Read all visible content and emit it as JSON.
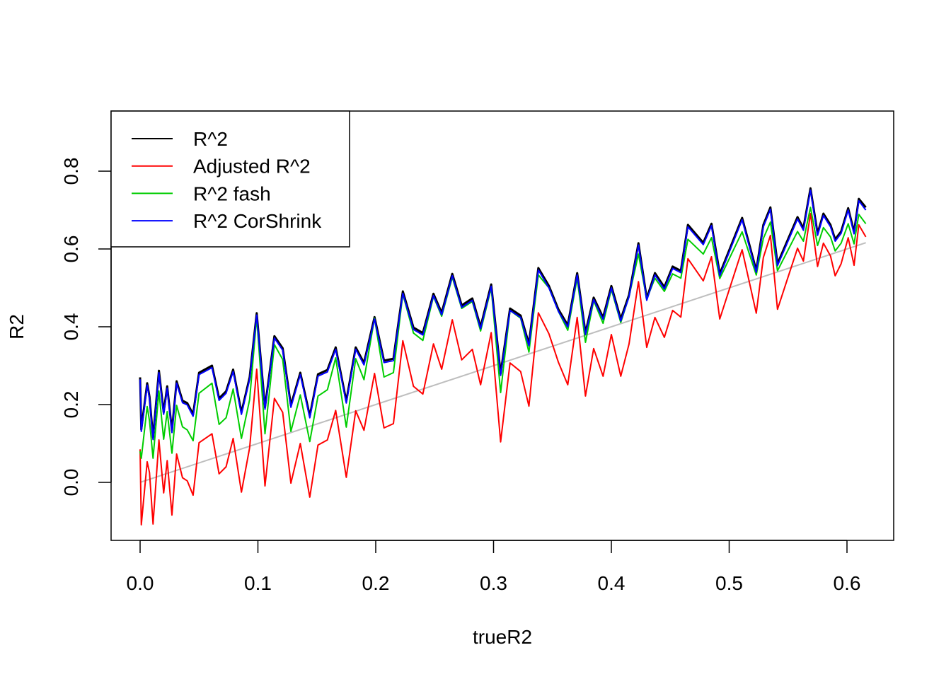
{
  "chart_data": {
    "type": "line",
    "title": "",
    "xlabel": "trueR2",
    "ylabel": "R2",
    "xlim": [
      -0.025,
      0.64
    ],
    "ylim": [
      -0.15,
      0.95
    ],
    "xticks": [
      "0.0",
      "0.1",
      "0.2",
      "0.3",
      "0.4",
      "0.5",
      "0.6"
    ],
    "xtick_values": [
      0,
      0.1,
      0.2,
      0.3,
      0.4,
      0.5,
      0.6
    ],
    "yticks": [
      "0.0",
      "0.2",
      "0.4",
      "0.6",
      "0.8"
    ],
    "ytick_values": [
      0,
      0.2,
      0.4,
      0.6,
      0.8
    ],
    "legend_position": "top-left",
    "x": [
      0,
      0.001,
      0.006,
      0.008,
      0.011,
      0.016,
      0.02,
      0.023,
      0.027,
      0.031,
      0.036,
      0.04,
      0.045,
      0.05,
      0.061,
      0.067,
      0.073,
      0.079,
      0.086,
      0.093,
      0.099,
      0.106,
      0.114,
      0.121,
      0.128,
      0.136,
      0.144,
      0.151,
      0.159,
      0.166,
      0.175,
      0.183,
      0.19,
      0.199,
      0.207,
      0.215,
      0.223,
      0.232,
      0.24,
      0.249,
      0.256,
      0.265,
      0.273,
      0.282,
      0.289,
      0.298,
      0.306,
      0.314,
      0.323,
      0.33,
      0.338,
      0.347,
      0.355,
      0.363,
      0.371,
      0.378,
      0.385,
      0.393,
      0.4,
      0.408,
      0.415,
      0.423,
      0.43,
      0.437,
      0.445,
      0.452,
      0.459,
      0.465,
      0.478,
      0.485,
      0.492,
      0.511,
      0.523,
      0.529,
      0.535,
      0.541,
      0.558,
      0.563,
      0.569,
      0.575,
      0.58,
      0.586,
      0.59,
      0.595,
      0.601,
      0.606,
      0.61,
      0.616
    ],
    "series": [
      {
        "name": "R^2",
        "color": "#000000",
        "values": [
          0.27,
          0.136,
          0.255,
          0.22,
          0.115,
          0.287,
          0.18,
          0.247,
          0.133,
          0.26,
          0.21,
          0.204,
          0.175,
          0.282,
          0.3,
          0.216,
          0.234,
          0.29,
          0.18,
          0.27,
          0.435,
          0.193,
          0.376,
          0.345,
          0.198,
          0.282,
          0.171,
          0.278,
          0.289,
          0.347,
          0.209,
          0.347,
          0.307,
          0.425,
          0.313,
          0.318,
          0.491,
          0.398,
          0.384,
          0.485,
          0.436,
          0.536,
          0.455,
          0.473,
          0.4,
          0.509,
          0.28,
          0.447,
          0.429,
          0.356,
          0.551,
          0.505,
          0.445,
          0.404,
          0.538,
          0.385,
          0.475,
          0.424,
          0.505,
          0.42,
          0.482,
          0.615,
          0.473,
          0.538,
          0.502,
          0.555,
          0.544,
          0.662,
          0.616,
          0.665,
          0.536,
          0.68,
          0.545,
          0.662,
          0.707,
          0.562,
          0.682,
          0.653,
          0.756,
          0.64,
          0.691,
          0.662,
          0.625,
          0.645,
          0.705,
          0.644,
          0.729,
          0.707
        ]
      },
      {
        "name": "Adjusted R^2",
        "color": "#ff0000",
        "values": [
          0.085,
          -0.109,
          0.053,
          0.025,
          -0.107,
          0.109,
          -0.027,
          0.056,
          -0.084,
          0.073,
          0.012,
          0.004,
          -0.033,
          0.102,
          0.125,
          0.022,
          0.04,
          0.113,
          -0.025,
          0.089,
          0.291,
          -0.009,
          0.216,
          0.18,
          -0.002,
          0.1,
          -0.038,
          0.096,
          0.109,
          0.185,
          0.013,
          0.184,
          0.134,
          0.28,
          0.14,
          0.151,
          0.364,
          0.247,
          0.227,
          0.356,
          0.291,
          0.418,
          0.315,
          0.342,
          0.251,
          0.385,
          0.104,
          0.307,
          0.285,
          0.196,
          0.436,
          0.382,
          0.309,
          0.251,
          0.424,
          0.222,
          0.344,
          0.273,
          0.38,
          0.273,
          0.356,
          0.516,
          0.347,
          0.424,
          0.373,
          0.442,
          0.425,
          0.575,
          0.518,
          0.58,
          0.42,
          0.598,
          0.435,
          0.578,
          0.635,
          0.445,
          0.602,
          0.569,
          0.691,
          0.555,
          0.615,
          0.582,
          0.531,
          0.562,
          0.629,
          0.558,
          0.662,
          0.631
        ]
      },
      {
        "name": "R^2 fash",
        "color": "#00cd00",
        "values": [
          0.08,
          0.062,
          0.195,
          0.158,
          0.062,
          0.235,
          0.111,
          0.182,
          0.075,
          0.198,
          0.143,
          0.135,
          0.107,
          0.229,
          0.255,
          0.149,
          0.166,
          0.24,
          0.113,
          0.213,
          0.425,
          0.125,
          0.354,
          0.316,
          0.131,
          0.225,
          0.105,
          0.222,
          0.238,
          0.32,
          0.142,
          0.318,
          0.264,
          0.422,
          0.271,
          0.282,
          0.484,
          0.384,
          0.365,
          0.478,
          0.427,
          0.527,
          0.447,
          0.465,
          0.389,
          0.5,
          0.231,
          0.442,
          0.422,
          0.335,
          0.533,
          0.5,
          0.44,
          0.391,
          0.525,
          0.36,
          0.467,
          0.409,
          0.496,
          0.411,
          0.478,
          0.587,
          0.471,
          0.525,
          0.491,
          0.536,
          0.525,
          0.625,
          0.587,
          0.629,
          0.524,
          0.644,
          0.533,
          0.627,
          0.669,
          0.544,
          0.645,
          0.62,
          0.707,
          0.609,
          0.655,
          0.631,
          0.595,
          0.615,
          0.665,
          0.613,
          0.689,
          0.665
        ]
      },
      {
        "name": "R^2 CorShrink",
        "color": "#0000ff",
        "values": [
          0.265,
          0.131,
          0.25,
          0.215,
          0.11,
          0.282,
          0.175,
          0.242,
          0.128,
          0.255,
          0.205,
          0.199,
          0.17,
          0.277,
          0.295,
          0.211,
          0.229,
          0.285,
          0.175,
          0.265,
          0.43,
          0.188,
          0.371,
          0.34,
          0.193,
          0.277,
          0.166,
          0.273,
          0.284,
          0.342,
          0.204,
          0.342,
          0.302,
          0.42,
          0.308,
          0.313,
          0.486,
          0.393,
          0.379,
          0.48,
          0.431,
          0.531,
          0.45,
          0.468,
          0.395,
          0.504,
          0.275,
          0.442,
          0.424,
          0.351,
          0.546,
          0.5,
          0.44,
          0.399,
          0.533,
          0.38,
          0.47,
          0.419,
          0.5,
          0.415,
          0.477,
          0.61,
          0.468,
          0.533,
          0.497,
          0.55,
          0.539,
          0.657,
          0.611,
          0.66,
          0.531,
          0.675,
          0.54,
          0.657,
          0.702,
          0.557,
          0.677,
          0.648,
          0.751,
          0.635,
          0.686,
          0.657,
          0.62,
          0.64,
          0.7,
          0.639,
          0.724,
          0.7
        ]
      }
    ],
    "reference_line": {
      "name": "y = x",
      "color": "#bebebe",
      "x": [
        0,
        0.616
      ],
      "y": [
        0,
        0.616
      ]
    }
  }
}
